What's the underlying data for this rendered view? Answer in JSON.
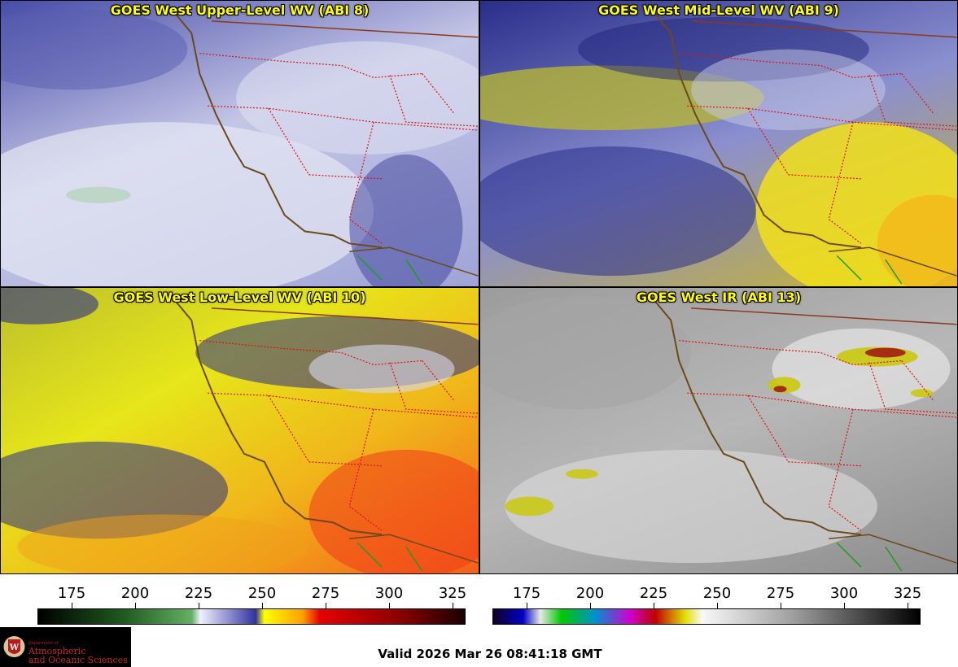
{
  "panels": [
    {
      "title": "GOES West Upper-Level WV (ABI 8)"
    },
    {
      "title": "GOES West Mid-Level WV (ABI 9)"
    },
    {
      "title": "GOES West Low-Level WV (ABI 10)"
    },
    {
      "title": "GOES West IR (ABI 13)"
    }
  ],
  "colorbars": {
    "left_ticks": [
      "175",
      "200",
      "225",
      "250",
      "275",
      "300",
      "325"
    ],
    "right_ticks": [
      "175",
      "200",
      "225",
      "250",
      "275",
      "300",
      "325"
    ]
  },
  "logo": {
    "dept": "Department of",
    "line1": "Atmospheric",
    "line2": "and Oceanic Sciences"
  },
  "footer": {
    "valid": "Valid 2026 Mar 26 08:41:18 GMT"
  },
  "colors": {
    "title": "#ffff00",
    "state_border": "#e01010",
    "coastline": "#6b4a1a",
    "mexico_border": "#1aa01a"
  }
}
